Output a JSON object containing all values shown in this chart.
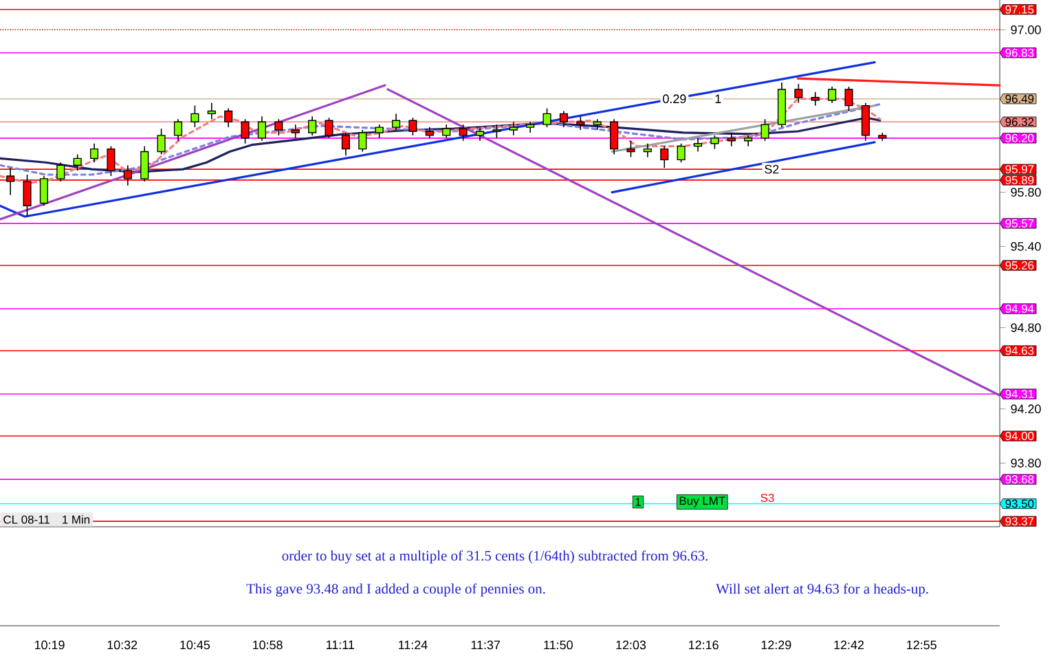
{
  "chart_data": {
    "type": "candlestick",
    "x": [
      10.2,
      10.25,
      10.3,
      10.35,
      10.4,
      10.45,
      10.5,
      10.55,
      10.6,
      10.65,
      10.7,
      10.75,
      10.8,
      10.85,
      10.9,
      10.95,
      11.0,
      11.05,
      11.1,
      11.15,
      11.2,
      11.25,
      11.3,
      11.35,
      11.4,
      11.45,
      11.5,
      11.55,
      11.6,
      11.65,
      11.7,
      11.75,
      11.8,
      11.85,
      11.9,
      11.95,
      12.0,
      12.05,
      12.1,
      12.15,
      12.2,
      12.25,
      12.3,
      12.35,
      12.4,
      12.45,
      12.5,
      12.55,
      12.6,
      12.65,
      12.7,
      12.75,
      12.8
    ],
    "ohlc": [
      [
        95.92,
        95.98,
        95.78,
        95.88
      ],
      [
        95.88,
        95.93,
        95.62,
        95.7
      ],
      [
        95.72,
        95.92,
        95.7,
        95.9
      ],
      [
        95.9,
        96.02,
        95.88,
        96.0
      ],
      [
        96.0,
        96.08,
        95.96,
        96.05
      ],
      [
        96.05,
        96.16,
        96.02,
        96.12
      ],
      [
        96.12,
        96.14,
        95.92,
        95.96
      ],
      [
        95.96,
        96.0,
        95.85,
        95.9
      ],
      [
        95.9,
        96.14,
        95.88,
        96.1
      ],
      [
        96.1,
        96.27,
        96.08,
        96.22
      ],
      [
        96.22,
        96.34,
        96.18,
        96.32
      ],
      [
        96.32,
        96.44,
        96.28,
        96.38
      ],
      [
        96.38,
        96.46,
        96.34,
        96.4
      ],
      [
        96.4,
        96.42,
        96.28,
        96.32
      ],
      [
        96.32,
        96.34,
        96.16,
        96.2
      ],
      [
        96.2,
        96.36,
        96.18,
        96.32
      ],
      [
        96.32,
        96.34,
        96.22,
        96.26
      ],
      [
        96.26,
        96.3,
        96.2,
        96.24
      ],
      [
        96.24,
        96.36,
        96.22,
        96.33
      ],
      [
        96.33,
        96.35,
        96.2,
        96.22
      ],
      [
        96.22,
        96.24,
        96.07,
        96.12
      ],
      [
        96.12,
        96.26,
        96.1,
        96.24
      ],
      [
        96.24,
        96.3,
        96.2,
        96.28
      ],
      [
        96.28,
        96.38,
        96.26,
        96.33
      ],
      [
        96.33,
        96.35,
        96.22,
        96.25
      ],
      [
        96.25,
        96.28,
        96.2,
        96.22
      ],
      [
        96.22,
        96.3,
        96.2,
        96.27
      ],
      [
        96.27,
        96.3,
        96.18,
        96.22
      ],
      [
        96.22,
        96.28,
        96.18,
        96.25
      ],
      [
        96.25,
        96.3,
        96.2,
        96.26
      ],
      [
        96.26,
        96.32,
        96.22,
        96.28
      ],
      [
        96.28,
        96.32,
        96.24,
        96.3
      ],
      [
        96.3,
        96.42,
        96.28,
        96.38
      ],
      [
        96.38,
        96.4,
        96.28,
        96.32
      ],
      [
        96.32,
        96.36,
        96.26,
        96.3
      ],
      [
        96.3,
        96.34,
        96.26,
        96.32
      ],
      [
        96.32,
        96.34,
        96.08,
        96.12
      ],
      [
        96.12,
        96.18,
        96.06,
        96.1
      ],
      [
        96.1,
        96.16,
        96.06,
        96.12
      ],
      [
        96.12,
        96.14,
        95.98,
        96.04
      ],
      [
        96.04,
        96.16,
        96.02,
        96.14
      ],
      [
        96.14,
        96.2,
        96.1,
        96.16
      ],
      [
        96.16,
        96.22,
        96.12,
        96.2
      ],
      [
        96.2,
        96.24,
        96.14,
        96.18
      ],
      [
        96.18,
        96.22,
        96.14,
        96.2
      ],
      [
        96.2,
        96.34,
        96.18,
        96.3
      ],
      [
        96.3,
        96.61,
        96.28,
        96.56
      ],
      [
        96.56,
        96.6,
        96.46,
        96.5
      ],
      [
        96.5,
        96.54,
        96.44,
        96.48
      ],
      [
        96.48,
        96.58,
        96.46,
        96.56
      ],
      [
        96.56,
        96.58,
        96.4,
        96.44
      ],
      [
        96.44,
        96.46,
        96.18,
        96.22
      ],
      [
        96.22,
        96.24,
        96.18,
        96.2
      ]
    ],
    "series": [
      {
        "type": "line",
        "color": "#1f2060",
        "line_style": "solid",
        "x": [
          10.169,
          10.305,
          10.443,
          10.579,
          10.715,
          10.785,
          10.854,
          10.92,
          11.059,
          11.195,
          11.4,
          11.522,
          11.797,
          12.002,
          12.207,
          12.412,
          12.548,
          12.753,
          12.793
        ],
        "values": [
          96.05,
          96.02,
          95.97,
          95.95,
          95.97,
          96.02,
          96.1,
          96.15,
          96.19,
          96.23,
          96.26,
          96.27,
          96.31,
          96.28,
          96.24,
          96.23,
          96.25,
          96.35,
          96.33
        ]
      },
      {
        "type": "line",
        "color": "#8080e0",
        "line_style": "dashed",
        "x": [
          10.169,
          10.305,
          10.443,
          10.579,
          10.854,
          11.124,
          11.522,
          11.797,
          12.207,
          12.412,
          12.548,
          12.793
        ],
        "values": [
          96.0,
          95.93,
          95.93,
          95.98,
          96.21,
          96.29,
          96.25,
          96.31,
          96.19,
          96.21,
          96.31,
          96.45
        ]
      },
      {
        "type": "line",
        "color": "#f08080",
        "line_style": "dashed",
        "x": [
          10.169,
          10.252,
          10.305,
          10.373,
          10.443,
          10.485,
          10.55,
          10.62,
          10.715,
          10.825,
          10.878,
          10.936,
          11.018,
          11.124,
          11.235,
          11.305,
          11.371,
          11.453,
          11.522,
          11.797,
          11.933,
          12.014,
          12.068,
          12.207,
          12.343,
          12.453,
          12.548,
          12.683,
          12.753,
          12.793
        ],
        "values": [
          95.92,
          95.87,
          95.88,
          95.95,
          96.03,
          96.07,
          95.95,
          96.0,
          96.21,
          96.36,
          96.33,
          96.24,
          96.24,
          96.31,
          96.21,
          96.24,
          96.29,
          96.24,
          96.26,
          96.31,
          96.33,
          96.24,
          96.14,
          96.14,
          96.19,
          96.24,
          96.49,
          96.49,
          96.41,
          96.34
        ]
      },
      {
        "type": "line",
        "color": "#1030e0",
        "line_style": "solid",
        "x": [
          10.169,
          10.243,
          12.777
        ],
        "values": [
          95.7,
          95.62,
          96.76
        ]
      },
      {
        "type": "line",
        "color": "#1030e0",
        "line_style": "solid",
        "x": [
          11.994,
          12.777
        ],
        "values": [
          95.8,
          96.17
        ]
      },
      {
        "type": "line",
        "color": "#a040c0",
        "line_style": "solid",
        "x": [
          10.169,
          11.317
        ],
        "values": [
          95.6,
          96.59
        ]
      },
      {
        "type": "line",
        "color": "#a040c0",
        "line_style": "solid",
        "x": [
          11.325,
          13.15
        ],
        "values": [
          96.56,
          94.3
        ]
      },
      {
        "type": "line",
        "color": "#ff2020",
        "line_style": "solid",
        "x": [
          12.548,
          13.15
        ],
        "values": [
          96.64,
          96.59
        ]
      },
      {
        "type": "line",
        "color": "#a0a0a0",
        "line_style": "solid",
        "x": [
          11.994,
          12.777
        ],
        "values": [
          96.1,
          96.44
        ]
      }
    ],
    "ref_lines": [
      {
        "axis": "y",
        "value": 97.15,
        "label": "97.15",
        "color": "#ff0000"
      },
      {
        "axis": "y",
        "value": 97.0,
        "color": "#ff0000",
        "line_style": "dotted"
      },
      {
        "axis": "y",
        "value": 96.83,
        "label": "96.83",
        "color": "#ff00ff"
      },
      {
        "axis": "y",
        "value": 96.49,
        "label": "96.49",
        "color": "#d8b48a"
      },
      {
        "axis": "y",
        "value": 96.32,
        "label": "96.32",
        "color": "#f08080"
      },
      {
        "axis": "y",
        "value": 96.2,
        "label": "96.20",
        "color": "#ff00ff"
      },
      {
        "axis": "y",
        "value": 95.97,
        "label": "95.97",
        "color": "#ff0000"
      },
      {
        "axis": "y",
        "value": 95.89,
        "label": "95.89",
        "color": "#ff0000"
      },
      {
        "axis": "y",
        "value": 95.57,
        "label": "95.57",
        "color": "#ff00ff"
      },
      {
        "axis": "y",
        "value": 95.26,
        "label": "95.26",
        "color": "#ff0000"
      },
      {
        "axis": "y",
        "value": 94.94,
        "label": "94.94",
        "color": "#ff00ff"
      },
      {
        "axis": "y",
        "value": 94.63,
        "label": "94.63",
        "color": "#ff0000"
      },
      {
        "axis": "y",
        "value": 94.31,
        "label": "94.31",
        "color": "#ff00ff"
      },
      {
        "axis": "y",
        "value": 94.0,
        "label": "94.00",
        "color": "#ff0000"
      },
      {
        "axis": "y",
        "value": 93.68,
        "label": "93.68",
        "color": "#ff00ff"
      },
      {
        "axis": "y",
        "value": 93.5,
        "label": "93.50",
        "color": "#00ffff"
      },
      {
        "axis": "y",
        "value": 93.37,
        "label": "93.37",
        "color": "#ff0000"
      }
    ],
    "annotations": [
      {
        "text": "S2",
        "x": 12.47,
        "y": 95.97
      },
      {
        "text": "0.29",
        "x": 12.18,
        "y": 96.49
      },
      {
        "text": "1",
        "x": 12.31,
        "y": 96.49
      },
      "S3",
      "1",
      "Buy LMT",
      "CL 08-11",
      "1 Min",
      "order to buy set at a multiple of 31.5 cents (1/64th) subtracted from 96.63.",
      "This gave 93.48 and I added a couple of pennies on.",
      "Will set alert at 94.63 for a heads-up."
    ],
    "xlim": [
      10.169,
      13.15
    ],
    "ylim": [
      93.33,
      97.22
    ],
    "xticks": [
      {
        "value": 10.3167,
        "label": "10:19"
      },
      {
        "value": 10.5333,
        "label": "10:32"
      },
      {
        "value": 10.75,
        "label": "10:45"
      },
      {
        "value": 10.9667,
        "label": "10:58"
      },
      {
        "value": 11.1833,
        "label": "11:11"
      },
      {
        "value": 11.4,
        "label": "11:24"
      },
      {
        "value": 11.6167,
        "label": "11:37"
      },
      {
        "value": 11.8333,
        "label": "11:50"
      },
      {
        "value": 12.05,
        "label": "12:03"
      },
      {
        "value": 12.2667,
        "label": "12:16"
      },
      {
        "value": 12.4833,
        "label": "12:29"
      },
      {
        "value": 12.7,
        "label": "12:42"
      },
      {
        "value": 12.9167,
        "label": "12:55"
      }
    ],
    "yticks": [
      {
        "value": 97.0,
        "label": "97.00"
      },
      {
        "value": 95.8,
        "label": "95.80"
      },
      {
        "value": 95.4,
        "label": "95.40"
      },
      {
        "value": 94.8,
        "label": "94.80"
      },
      {
        "value": 94.2,
        "label": "94.20"
      },
      {
        "value": 93.8,
        "label": "93.80"
      }
    ]
  }
}
